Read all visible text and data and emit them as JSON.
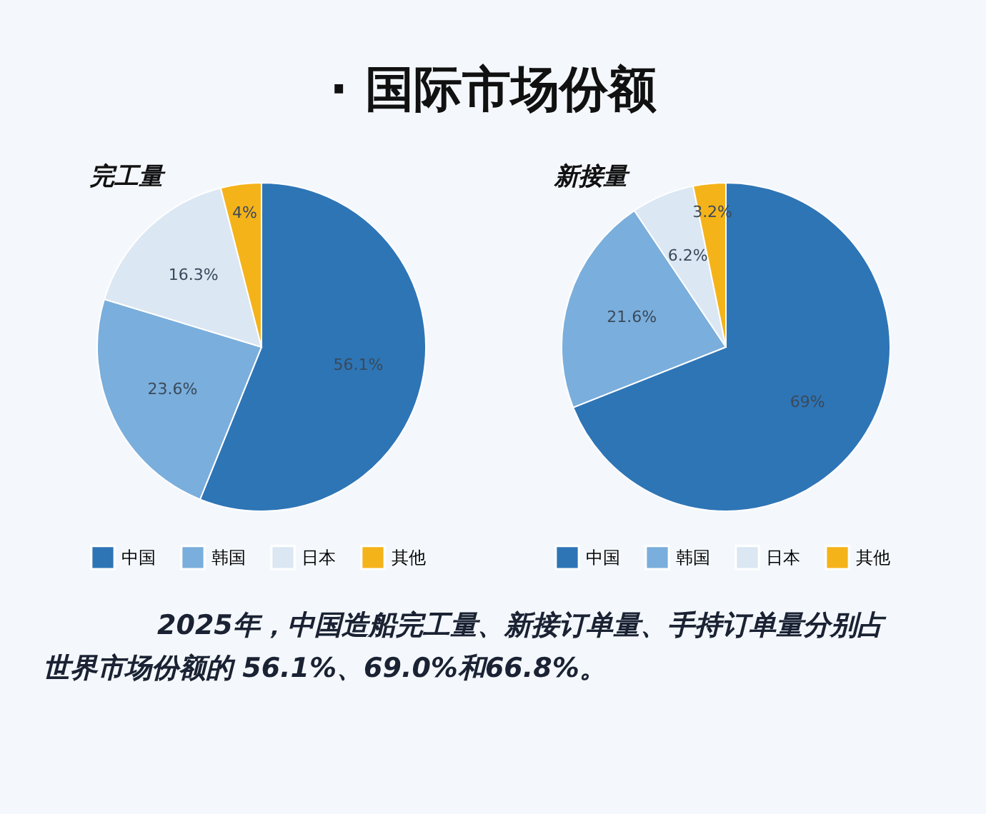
{
  "chart_data": [
    {
      "type": "pie",
      "title": "· 国际市场份额",
      "subtitle": "完工量",
      "categories": [
        "中国",
        "韩国",
        "日本",
        "其他"
      ],
      "values": [
        56.1,
        23.6,
        16.3,
        4
      ],
      "colors": [
        "#2e75b6",
        "#7aaedc",
        "#dbe7f3",
        "#f5b31a"
      ],
      "value_labels": [
        "56.1%",
        "23.6%",
        "16.3%",
        "4%"
      ],
      "legend": "bottom"
    },
    {
      "type": "pie",
      "title": "新接量",
      "categories": [
        "中国",
        "韩国",
        "日本",
        "其他"
      ],
      "values": [
        69,
        21.6,
        6.2,
        3.2
      ],
      "colors": [
        "#2e75b6",
        "#7aaedc",
        "#dbe7f3",
        "#f5b31a"
      ],
      "value_labels": [
        "69%",
        "21.6%",
        "6.2%",
        "3.2%"
      ],
      "legend": "bottom",
      "annotations": [
        "2025年，中国造船完工量、新接订单量、手持订单量分别占",
        "世界市场份额的 56.1%、69.0%和66.8%。"
      ]
    }
  ]
}
